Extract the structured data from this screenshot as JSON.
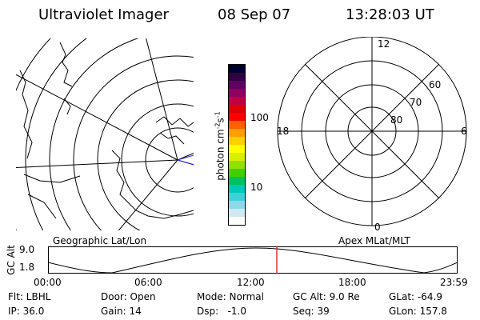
{
  "header": {
    "instrument": "Ultraviolet Imager",
    "date": "08 Sep 07",
    "time": "13:28:03 UT"
  },
  "left_map": {
    "label": "Geographic Lat/Lon"
  },
  "colorbar": {
    "unit_label": "photon cm",
    "unit_sup1": "-2",
    "unit_mid": "s",
    "unit_sup2": "-1",
    "ticks": [
      "100",
      "10"
    ],
    "colors": [
      "#ffffff",
      "#d0e8f0",
      "#8fd8e8",
      "#40d0d8",
      "#00c8b8",
      "#00c060",
      "#40d000",
      "#90e000",
      "#d8f000",
      "#ffff00",
      "#ffd000",
      "#ffa000",
      "#ff6000",
      "#ff0000",
      "#e00000",
      "#c00040",
      "#900060",
      "#600060",
      "#300040",
      "#000030"
    ]
  },
  "polar_plot": {
    "label": "Apex MLat/MLT",
    "mlt_labels": {
      "top": "12",
      "bottom": "0",
      "left": "18",
      "right": "6"
    },
    "lat_labels": [
      "60",
      "70",
      "80"
    ]
  },
  "gc_alt_plot": {
    "ylabel": "GC Alt",
    "yticks": [
      "9.0",
      "1.8"
    ],
    "xticks": [
      "00:00",
      "06:00",
      "12:00",
      "18:00",
      "23:59"
    ],
    "marker_color": "#e00000"
  },
  "status": {
    "row1": [
      {
        "key": "Flt",
        "text": "Flt: LBHL"
      },
      {
        "key": "Door",
        "text": "Door: Open"
      },
      {
        "key": "Mode",
        "text": "Mode: Normal"
      },
      {
        "key": "GCAlt",
        "text": "GC Alt: 9.0 Re"
      },
      {
        "key": "GLat",
        "text": "GLat: -64.9"
      }
    ],
    "row2": [
      {
        "key": "IP",
        "text": "IP: 36.0"
      },
      {
        "key": "Gain",
        "text": "Gain: 14"
      },
      {
        "key": "Dsp",
        "text": "Dsp:   -1.0"
      },
      {
        "key": "Seq",
        "text": "Seq: 39"
      },
      {
        "key": "GLon",
        "text": "GLon: 157.8"
      }
    ]
  }
}
